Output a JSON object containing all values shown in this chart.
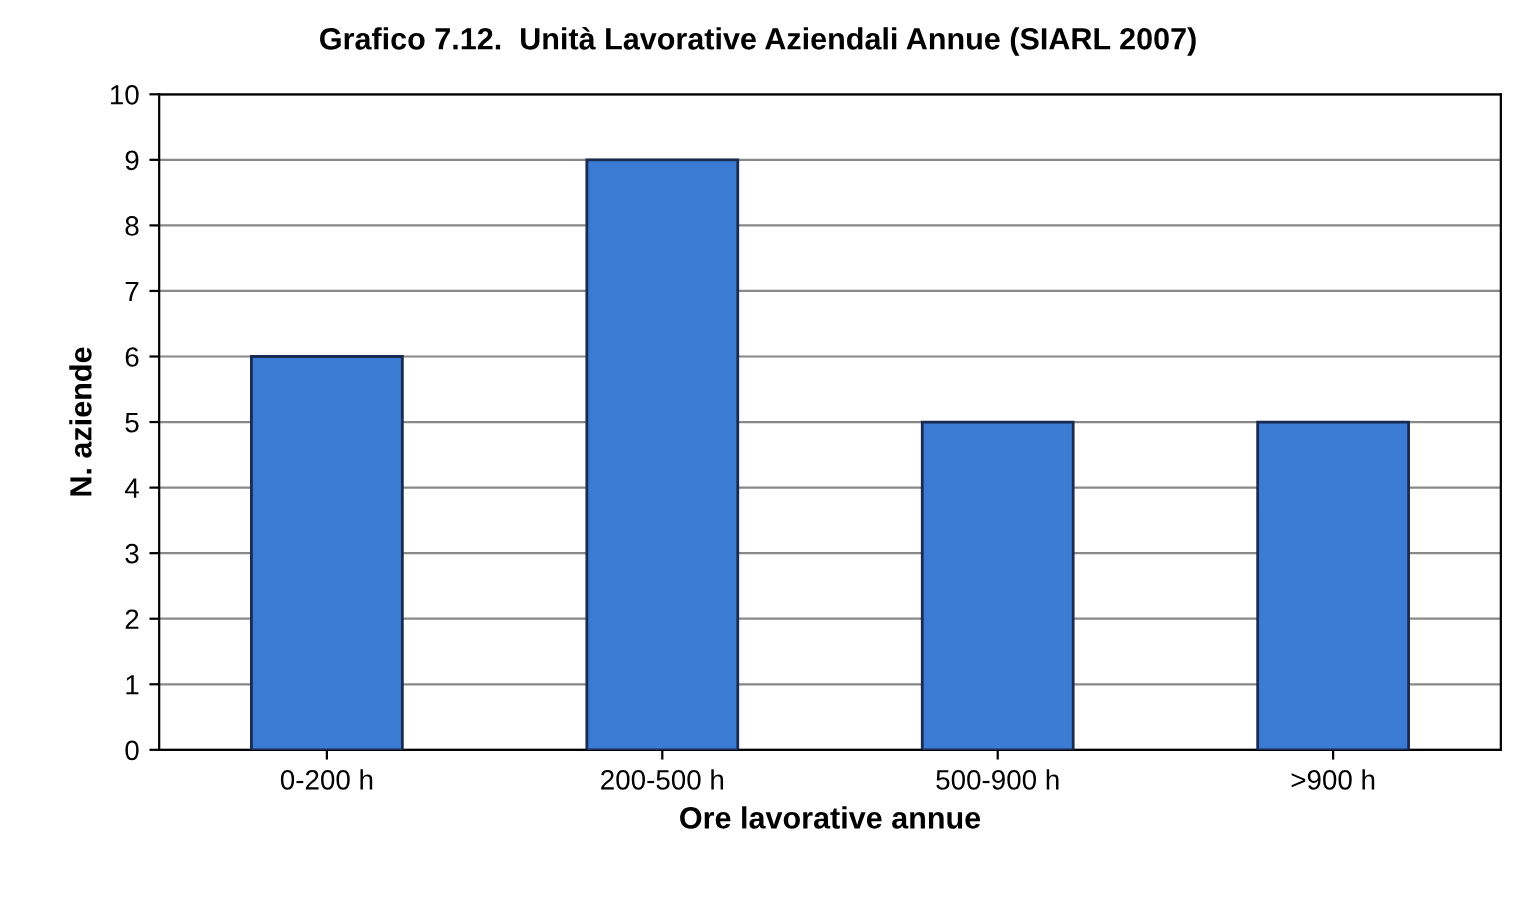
{
  "chart_data": {
    "type": "bar",
    "title": "Grafico 7.12.  Unità Lavorative Aziendali Annue (SIARL 2007)",
    "xlabel": "Ore lavorative annue",
    "ylabel": "N. aziende",
    "categories": [
      "0-200 h",
      "200-500 h",
      "500-900 h",
      ">900 h"
    ],
    "values": [
      6,
      9,
      5,
      5
    ],
    "color": "#3b7bd4",
    "ylim": [
      0,
      10
    ],
    "yticks": [
      0,
      1,
      2,
      3,
      4,
      5,
      6,
      7,
      8,
      9,
      10
    ],
    "grid": "y"
  }
}
